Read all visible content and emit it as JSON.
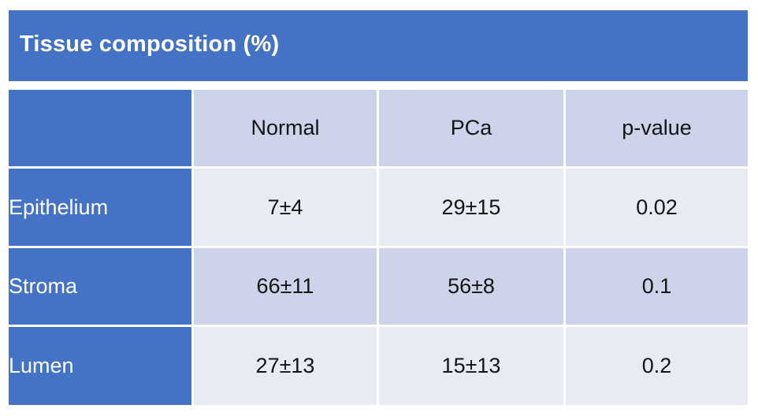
{
  "title": "Tissue composition (%)",
  "colors": {
    "accent_blue": "#4472C4",
    "band_dark": "#CDD3E8",
    "band_light": "#E9EBF4",
    "gridline": "#FFFFFF",
    "title_text": "#FFFFFF",
    "cell_text": "#141414"
  },
  "table": {
    "column_headers": [
      "",
      "Normal",
      "PCa",
      "p-value"
    ],
    "rows": [
      {
        "label": "Epithelium",
        "values": [
          "7±4",
          "29±15",
          "0.02"
        ]
      },
      {
        "label": "Stroma",
        "values": [
          "66±11",
          "56±8",
          "0.1"
        ]
      },
      {
        "label": "Lumen",
        "values": [
          "27±13",
          "15±13",
          "0.2"
        ]
      }
    ]
  },
  "chart_data": {
    "type": "table",
    "title": "Tissue composition (%)",
    "columns": [
      "Normal",
      "PCa",
      "p-value"
    ],
    "rows": [
      {
        "tissue": "Epithelium",
        "normal_pct": "7±4",
        "pca_pct": "29±15",
        "p_value": 0.02
      },
      {
        "tissue": "Stroma",
        "normal_pct": "66±11",
        "pca_pct": "56±8",
        "p_value": 0.1
      },
      {
        "tissue": "Lumen",
        "normal_pct": "27±13",
        "pca_pct": "15±13",
        "p_value": 0.2
      }
    ]
  }
}
